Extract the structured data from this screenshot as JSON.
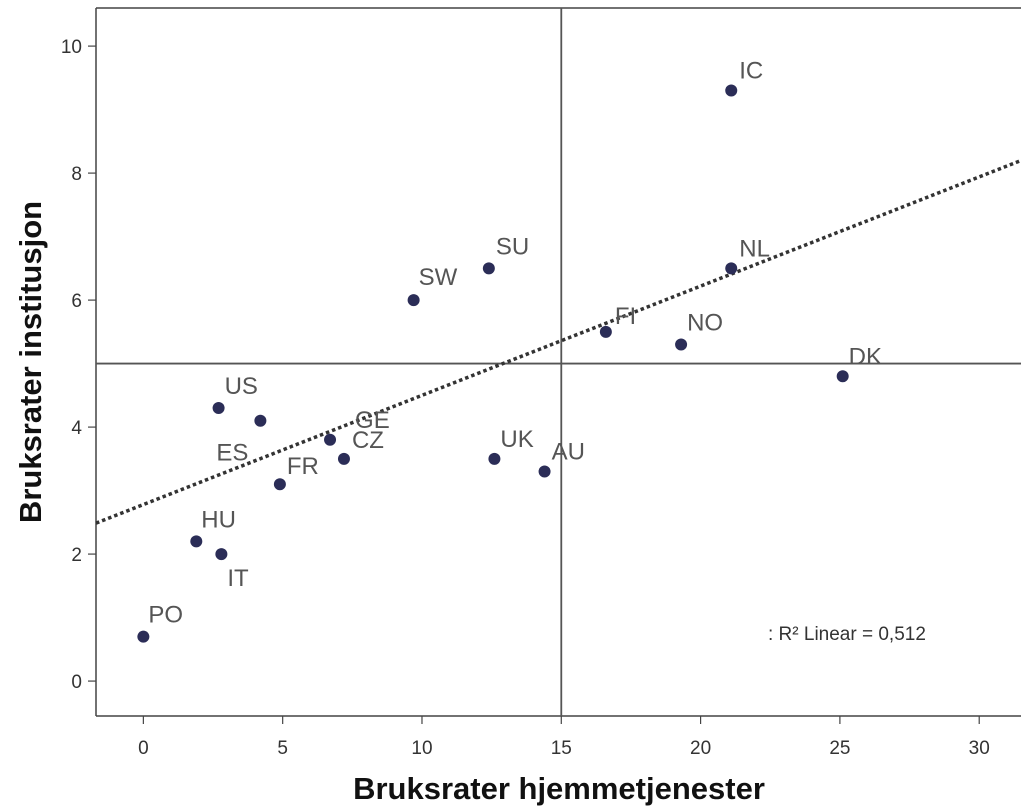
{
  "chart_data": {
    "type": "scatter",
    "title": "",
    "xlabel": "Bruksrater hjemmetjenester",
    "ylabel": "Bruksrater institusjon",
    "xlim": [
      -1.7,
      31.5
    ],
    "ylim": [
      -0.55,
      10.6
    ],
    "x_ticks": [
      0,
      5,
      10,
      15,
      20,
      25,
      30
    ],
    "y_ticks": [
      0,
      2,
      4,
      6,
      8,
      10
    ],
    "reference_lines": {
      "x": 15,
      "y": 5
    },
    "points": [
      {
        "label": "IC",
        "x": 21.1,
        "y": 9.3
      },
      {
        "label": "SU",
        "x": 12.4,
        "y": 6.5
      },
      {
        "label": "NL",
        "x": 21.1,
        "y": 6.5
      },
      {
        "label": "SW",
        "x": 9.7,
        "y": 6.0
      },
      {
        "label": "FI",
        "x": 16.6,
        "y": 5.5
      },
      {
        "label": "NO",
        "x": 19.3,
        "y": 5.3
      },
      {
        "label": "DK",
        "x": 25.1,
        "y": 4.8
      },
      {
        "label": "US",
        "x": 2.7,
        "y": 4.3
      },
      {
        "label": "ES",
        "x": 4.2,
        "y": 4.1
      },
      {
        "label": "GE",
        "x": 6.7,
        "y": 3.8
      },
      {
        "label": "CZ",
        "x": 7.2,
        "y": 3.5
      },
      {
        "label": "FR",
        "x": 4.9,
        "y": 3.1
      },
      {
        "label": "UK",
        "x": 12.6,
        "y": 3.5
      },
      {
        "label": "AU",
        "x": 14.4,
        "y": 3.3
      },
      {
        "label": "HU",
        "x": 1.9,
        "y": 2.2
      },
      {
        "label": "IT",
        "x": 2.8,
        "y": 2.0
      },
      {
        "label": "PO",
        "x": 0.0,
        "y": 0.7
      }
    ],
    "fit_line": {
      "type": "linear",
      "intercept": 2.78,
      "slope": 0.172,
      "r2_label": ": R² Linear = 0,512"
    },
    "grid": false,
    "legend": "none",
    "colors": {
      "point": "#2b2d57",
      "fit_line": "#333333",
      "ref_line": "#555555",
      "frame": "#444444"
    }
  }
}
